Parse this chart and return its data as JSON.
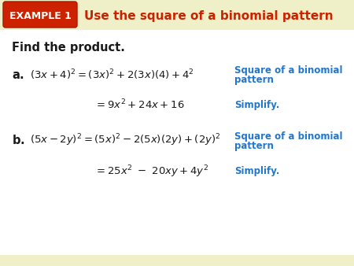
{
  "bg_color": "#f5f5d0",
  "header_bg": "#f0f0c8",
  "white_bg": "#ffffff",
  "example_box_color": "#cc2200",
  "example_text": "EXAMPLE 1",
  "header_title": "Use the square of a binomial pattern",
  "header_title_color": "#cc2200",
  "find_product": "Find the product.",
  "math_color": "#1a1a1a",
  "blue_color": "#2277cc",
  "note1a": "Square of a binomial",
  "note1b": "pattern",
  "note2": "Simplify.",
  "note3a": "Square of a binomial",
  "note3b": "pattern",
  "note4": "Simplify."
}
